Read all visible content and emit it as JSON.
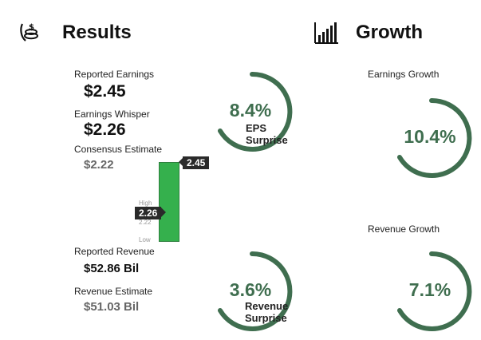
{
  "results": {
    "icon": "money-hand-icon",
    "title": "Results",
    "reported_earnings_label": "Reported Earnings",
    "reported_earnings_value": "$2.45",
    "whisper_label": "Earnings Whisper",
    "whisper_value": "$2.26",
    "consensus_label": "Consensus Estimate",
    "consensus_value": "$2.22",
    "reported_revenue_label": "Reported Revenue",
    "reported_revenue_value": "$52.86 Bil",
    "revenue_estimate_label": "Revenue Estimate",
    "revenue_estimate_value": "$51.03 Bil"
  },
  "bar": {
    "top_tag": "2.45",
    "mid_tag": "2.26",
    "high_label": "High",
    "consensus_tick": "2.22",
    "low_label": "Low",
    "color": "#35b04d"
  },
  "eps_surprise": {
    "value": "8.4%",
    "line1": "EPS",
    "line2": "Surprise"
  },
  "revenue_surprise": {
    "value": "3.6%",
    "line1": "Revenue",
    "line2": "Surprise"
  },
  "growth": {
    "icon": "bar-chart-icon",
    "title": "Growth",
    "earnings_label": "Earnings Growth",
    "earnings_value": "10.4%",
    "revenue_label": "Revenue Growth",
    "revenue_value": "7.1%"
  },
  "colors": {
    "gauge": "#3f6e4f",
    "tag_bg": "#2a2a2a"
  }
}
